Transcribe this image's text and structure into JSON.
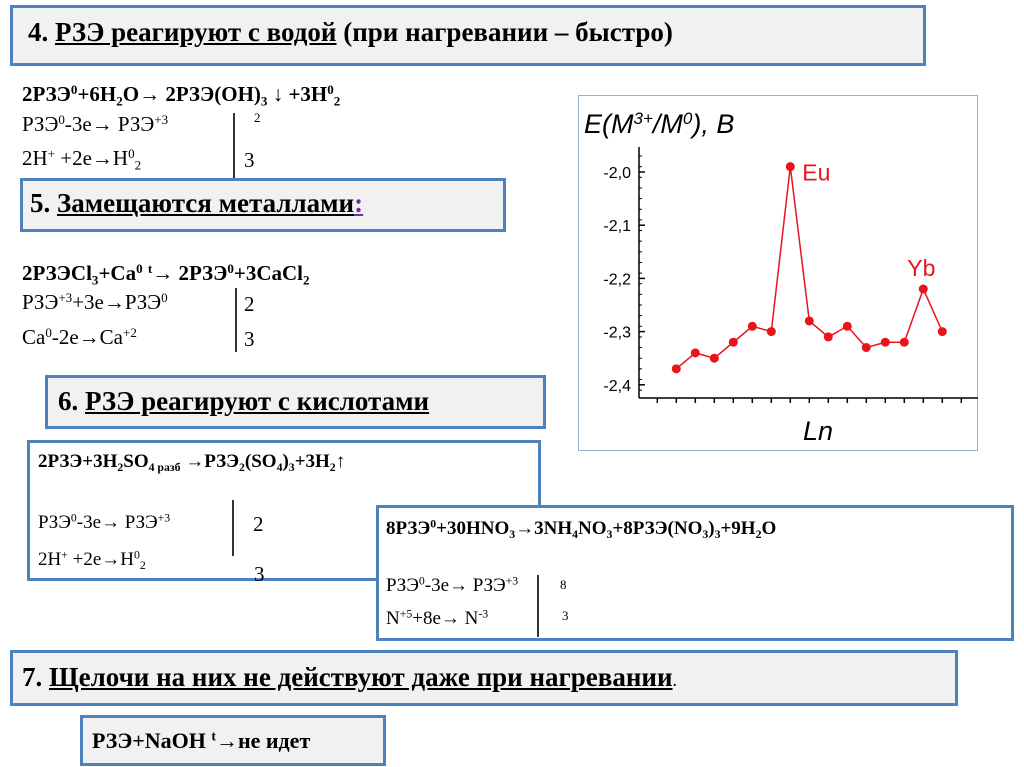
{
  "section4": {
    "num": "4. ",
    "title_underlined": "РЗЭ реагируют с водой",
    "title_rest": " (при нагревании – быстро)"
  },
  "water": {
    "equation": [
      "2РЗЭ",
      [
        "^",
        "0"
      ],
      "+6H",
      [
        "_",
        "2"
      ],
      "O→ 2РЗЭ(OH)",
      [
        "_",
        "3"
      ],
      " ↓ +3H",
      [
        "^",
        "0"
      ],
      [
        "_",
        "2"
      ]
    ],
    "half1": [
      "РЗЭ",
      [
        "^",
        "0"
      ],
      "-3e→ РЗЭ",
      [
        "^",
        "+3"
      ]
    ],
    "half2": [
      "2H",
      [
        "^",
        "+"
      ],
      " +2e→H",
      [
        "^",
        "0"
      ],
      [
        "_",
        "2"
      ]
    ],
    "coef1": "2",
    "coef2": "3"
  },
  "section5": {
    "num": "5. ",
    "title_underlined": "Замещаются металлами",
    "colon": ":",
    "colon_color": "#7030a0"
  },
  "metals": {
    "equation": [
      "2РЗЭCl",
      [
        "_",
        "3"
      ],
      "+Ca",
      [
        "^",
        "0"
      ],
      "  ",
      [
        "^",
        "t"
      ],
      "→ 2РЗЭ",
      [
        "^",
        "0"
      ],
      "+3CaCl",
      [
        "_",
        "2"
      ]
    ],
    "half1": [
      "РЗЭ",
      [
        "^",
        "+3"
      ],
      "+3e→РЗЭ",
      [
        "^",
        "0"
      ]
    ],
    "half2": [
      "Ca",
      [
        "^",
        "0"
      ],
      "-2e→Ca",
      [
        "^",
        "+2"
      ]
    ],
    "coef1": "2",
    "coef2": "3"
  },
  "section6": {
    "num": "6. ",
    "title_underlined": "РЗЭ реагируют с кислотами"
  },
  "sulfuric": {
    "equation": [
      "2РЗЭ+3H",
      [
        "_",
        "2"
      ],
      "SO",
      [
        "_",
        "4 разб"
      ],
      "  →РЗЭ",
      [
        "_",
        "2"
      ],
      "(SO",
      [
        "_",
        "4"
      ],
      ")",
      [
        "_",
        "3"
      ],
      "+3H",
      [
        "_",
        "2"
      ],
      "↑"
    ],
    "half1": [
      "РЗЭ",
      [
        "^",
        "0"
      ],
      "-3e→ РЗЭ",
      [
        "^",
        "+3"
      ]
    ],
    "half2": [
      "2H",
      [
        "^",
        "+"
      ],
      " +2e→H",
      [
        "^",
        "0"
      ],
      [
        "_",
        "2"
      ]
    ],
    "coef1": "2",
    "coef2": "3"
  },
  "nitric": {
    "equation": [
      "8РЗЭ",
      [
        "^",
        "0"
      ],
      "+30HNO",
      [
        "_",
        "3"
      ],
      "→3NH",
      [
        "_",
        "4"
      ],
      "NO",
      [
        "_",
        "3"
      ],
      "+8РЗЭ(NO",
      [
        "_",
        "3"
      ],
      ")",
      [
        "_",
        "3"
      ],
      "+9H",
      [
        "_",
        "2"
      ],
      "O"
    ],
    "half1": [
      "РЗЭ",
      [
        "^",
        "0"
      ],
      "-3e→ РЗЭ",
      [
        "^",
        "+3"
      ]
    ],
    "half2": [
      "N",
      [
        "^",
        "+5"
      ],
      "+8e→ N",
      [
        "^",
        "-3"
      ]
    ],
    "coef1": "8",
    "coef2": "3"
  },
  "section7": {
    "num": "7. ",
    "title_underlined": "Щелочи на них не действуют даже при нагревании",
    "period": "."
  },
  "alkali": {
    "equation": [
      "РЗЭ+NaOH ",
      [
        "^",
        "t"
      ],
      "→не идет"
    ]
  },
  "colors": {
    "border": "#4f81bd",
    "series": "#e8141b"
  },
  "chart_data": {
    "type": "line",
    "ylabel": "E(M3+/M0), B",
    "ylabel_parts": {
      "a": "E(M",
      "sup1": "3+",
      "b": "/M",
      "sup2": "0",
      "c": "), B"
    },
    "xlabel": "Ln",
    "ylim": [
      -2.45,
      -1.95
    ],
    "yticks": [
      -2.0,
      -2.1,
      -2.2,
      -2.3,
      -2.4
    ],
    "ytick_labels": [
      "-2,0",
      "-2,1",
      "-2,2",
      "-2,3",
      "-2,4"
    ],
    "grid": false,
    "values": [
      -2.37,
      -2.34,
      -2.35,
      -2.32,
      -2.29,
      -2.3,
      -1.99,
      -2.28,
      -2.31,
      -2.29,
      -2.33,
      -2.32,
      -2.32,
      -2.22,
      -2.3
    ],
    "annotations": [
      {
        "index": 6,
        "text": "Eu"
      },
      {
        "index": 13,
        "text": "Yb"
      }
    ]
  }
}
